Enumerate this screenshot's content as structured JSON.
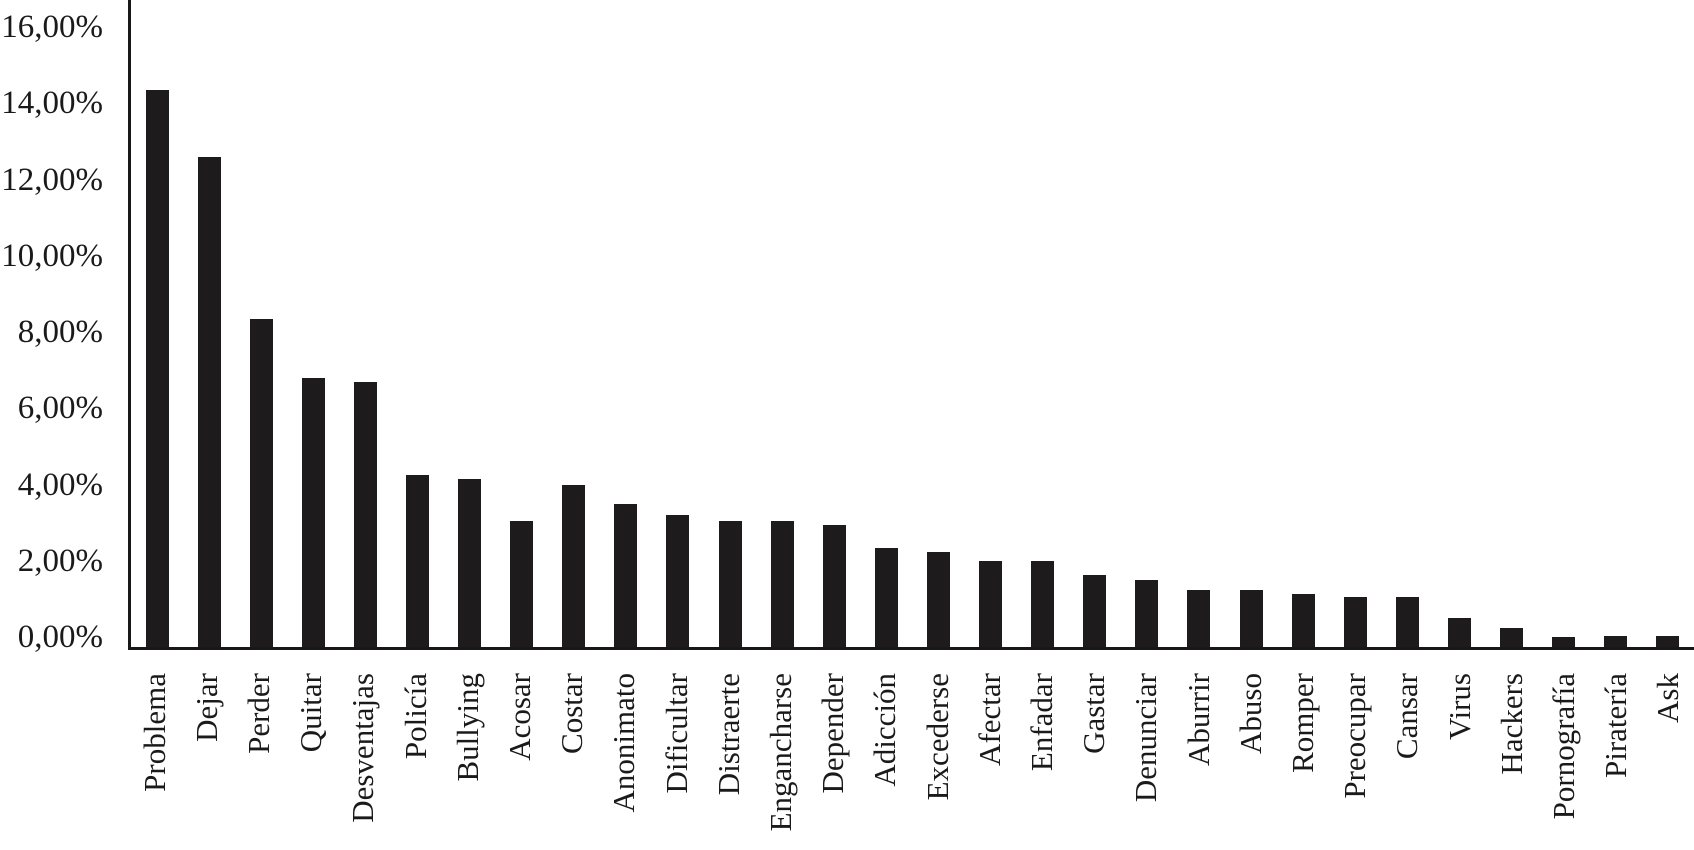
{
  "chart_data": {
    "type": "bar",
    "title": "",
    "xlabel": "",
    "ylabel": "",
    "categories": [
      "Problema",
      "Dejar",
      "Perder",
      "Quitar",
      "Desventajas",
      "Policía",
      "Bullying",
      "Acosar",
      "Costar",
      "Anonimato",
      "Dificultar",
      "Distraerte",
      "Engancharse",
      "Depender",
      "Adicción",
      "Excederse",
      "Afectar",
      "Enfadar",
      "Gastar",
      "Denunciar",
      "Aburrir",
      "Abuso",
      "Romper",
      "Preocupar",
      "Cansar",
      "Virus",
      "Hackers",
      "Pornografía",
      "Piratería",
      "Ask"
    ],
    "values": [
      14.6,
      12.85,
      8.6,
      7.05,
      6.95,
      4.5,
      4.4,
      3.3,
      4.25,
      3.75,
      3.45,
      3.3,
      3.3,
      3.2,
      2.6,
      2.5,
      2.25,
      2.25,
      1.9,
      1.75,
      1.5,
      1.5,
      1.4,
      1.3,
      1.3,
      0.75,
      0.5,
      0.25,
      0.3,
      0.3
    ],
    "value_unit": "%",
    "ylim": [
      0,
      16
    ],
    "yticks": [
      {
        "value": 16,
        "label": "16,00%"
      },
      {
        "value": 14,
        "label": "14,00%"
      },
      {
        "value": 12,
        "label": "12,00%"
      },
      {
        "value": 10,
        "label": "10,00%"
      },
      {
        "value": 8,
        "label": "8,00%"
      },
      {
        "value": 6,
        "label": "6,00%"
      },
      {
        "value": 4,
        "label": "4,00%"
      },
      {
        "value": 2,
        "label": "2,00%"
      },
      {
        "value": 0,
        "label": "0,00%"
      }
    ],
    "x_tick_rotation": 90,
    "grid": false,
    "legend": "none",
    "bar_color": "#1d1b1b",
    "axis_color": "#1a1717",
    "background": "#ffffff"
  }
}
